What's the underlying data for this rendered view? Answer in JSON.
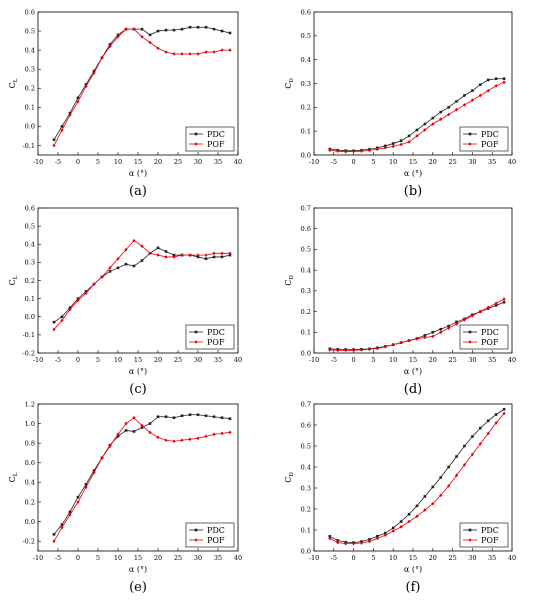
{
  "chart_data": [
    {
      "type": "line",
      "panel_label": "(a)",
      "xlabel": "α (°)",
      "ylabel": "CL",
      "xlim": [
        -10,
        40
      ],
      "ylim": [
        -0.15,
        0.6
      ],
      "xticks": [
        -10,
        -5,
        0,
        5,
        10,
        15,
        20,
        25,
        30,
        35,
        40
      ],
      "xtick_labels": [
        "-10",
        "-5",
        "0",
        "5",
        "10",
        "15",
        "20",
        "25",
        "30",
        "35",
        "40"
      ],
      "yticks": [
        -0.1,
        0.0,
        0.1,
        0.2,
        0.3,
        0.4,
        0.5,
        0.6
      ],
      "ytick_labels": [
        "-0.1",
        "0.0",
        "0.1",
        "0.2",
        "0.3",
        "0.4",
        "0.5",
        "0.6"
      ],
      "legend_position": "bottom-right",
      "series": [
        {
          "name": "PDC",
          "color": "#222222",
          "marker": "square",
          "x": [
            -6,
            -4,
            -2,
            0,
            2,
            4,
            6,
            8,
            10,
            12,
            14,
            16,
            18,
            20,
            22,
            24,
            26,
            28,
            30,
            32,
            34,
            36,
            38
          ],
          "y": [
            -0.07,
            0.0,
            0.07,
            0.15,
            0.22,
            0.29,
            0.36,
            0.43,
            0.48,
            0.51,
            0.51,
            0.51,
            0.48,
            0.5,
            0.505,
            0.505,
            0.51,
            0.52,
            0.52,
            0.52,
            0.51,
            0.5,
            0.49
          ]
        },
        {
          "name": "POF",
          "color": "#e8000b",
          "marker": "diamond",
          "x": [
            -6,
            -4,
            -2,
            0,
            2,
            4,
            6,
            8,
            10,
            12,
            14,
            16,
            18,
            20,
            22,
            24,
            26,
            28,
            30,
            32,
            34,
            36,
            38
          ],
          "y": [
            -0.1,
            -0.02,
            0.06,
            0.13,
            0.21,
            0.28,
            0.36,
            0.42,
            0.47,
            0.51,
            0.51,
            0.47,
            0.44,
            0.41,
            0.39,
            0.38,
            0.38,
            0.38,
            0.38,
            0.39,
            0.39,
            0.4,
            0.4
          ]
        }
      ]
    },
    {
      "type": "line",
      "panel_label": "(b)",
      "xlabel": "α (°)",
      "ylabel": "CD",
      "xlim": [
        -10,
        40
      ],
      "ylim": [
        0.0,
        0.6
      ],
      "xticks": [
        -10,
        -5,
        0,
        5,
        10,
        15,
        20,
        25,
        30,
        35,
        40
      ],
      "xtick_labels": [
        "-10",
        "-5",
        "0",
        "5",
        "10",
        "15",
        "20",
        "25",
        "30",
        "35",
        "40"
      ],
      "yticks": [
        0.0,
        0.1,
        0.2,
        0.3,
        0.4,
        0.5,
        0.6
      ],
      "ytick_labels": [
        "0.0",
        "0.1",
        "0.2",
        "0.3",
        "0.4",
        "0.5",
        "0.6"
      ],
      "legend_position": "bottom-right",
      "series": [
        {
          "name": "PDC",
          "color": "#222222",
          "marker": "square",
          "x": [
            -6,
            -4,
            -2,
            0,
            2,
            4,
            6,
            8,
            10,
            12,
            14,
            16,
            18,
            20,
            22,
            24,
            26,
            28,
            30,
            32,
            34,
            36,
            38
          ],
          "y": [
            0.025,
            0.02,
            0.018,
            0.018,
            0.02,
            0.024,
            0.03,
            0.038,
            0.048,
            0.06,
            0.08,
            0.105,
            0.13,
            0.155,
            0.18,
            0.2,
            0.225,
            0.25,
            0.27,
            0.295,
            0.315,
            0.32,
            0.32
          ]
        },
        {
          "name": "POF",
          "color": "#e8000b",
          "marker": "diamond",
          "x": [
            -6,
            -4,
            -2,
            0,
            2,
            4,
            6,
            8,
            10,
            12,
            14,
            16,
            18,
            20,
            22,
            24,
            26,
            28,
            30,
            32,
            34,
            36,
            38
          ],
          "y": [
            0.02,
            0.016,
            0.014,
            0.015,
            0.016,
            0.019,
            0.024,
            0.03,
            0.036,
            0.044,
            0.055,
            0.08,
            0.105,
            0.13,
            0.15,
            0.17,
            0.19,
            0.21,
            0.23,
            0.25,
            0.27,
            0.29,
            0.305
          ]
        }
      ]
    },
    {
      "type": "line",
      "panel_label": "(c)",
      "xlabel": "α (°)",
      "ylabel": "CL",
      "xlim": [
        -10,
        40
      ],
      "ylim": [
        -0.2,
        0.6
      ],
      "xticks": [
        -10,
        -5,
        0,
        5,
        10,
        15,
        20,
        25,
        30,
        35,
        40
      ],
      "xtick_labels": [
        "-10",
        "-5",
        "0",
        "5",
        "10",
        "15",
        "20",
        "25",
        "30",
        "35",
        "40"
      ],
      "yticks": [
        -0.2,
        -0.1,
        0.0,
        0.1,
        0.2,
        0.3,
        0.4,
        0.5,
        0.6
      ],
      "ytick_labels": [
        "-0.2",
        "-0.1",
        "0.0",
        "0.1",
        "0.2",
        "0.3",
        "0.4",
        "0.5",
        "0.6"
      ],
      "legend_position": "bottom-right",
      "series": [
        {
          "name": "PDC",
          "color": "#222222",
          "marker": "square",
          "x": [
            -6,
            -4,
            -2,
            0,
            2,
            4,
            6,
            8,
            10,
            12,
            14,
            16,
            18,
            20,
            22,
            24,
            26,
            28,
            30,
            32,
            34,
            36,
            38
          ],
          "y": [
            -0.03,
            0.0,
            0.05,
            0.1,
            0.14,
            0.18,
            0.22,
            0.25,
            0.27,
            0.29,
            0.28,
            0.31,
            0.35,
            0.38,
            0.36,
            0.34,
            0.34,
            0.34,
            0.33,
            0.32,
            0.33,
            0.33,
            0.34
          ]
        },
        {
          "name": "POF",
          "color": "#e8000b",
          "marker": "diamond",
          "x": [
            -6,
            -4,
            -2,
            0,
            2,
            4,
            6,
            8,
            10,
            12,
            14,
            16,
            18,
            20,
            22,
            24,
            26,
            28,
            30,
            32,
            34,
            36,
            38
          ],
          "y": [
            -0.07,
            -0.02,
            0.04,
            0.09,
            0.13,
            0.18,
            0.22,
            0.27,
            0.32,
            0.37,
            0.42,
            0.39,
            0.35,
            0.34,
            0.33,
            0.33,
            0.34,
            0.34,
            0.34,
            0.34,
            0.35,
            0.35,
            0.35
          ]
        }
      ]
    },
    {
      "type": "line",
      "panel_label": "(d)",
      "xlabel": "α (°)",
      "ylabel": "CD",
      "xlim": [
        -10,
        40
      ],
      "ylim": [
        0.0,
        0.7
      ],
      "xticks": [
        -10,
        -5,
        0,
        5,
        10,
        15,
        20,
        25,
        30,
        35,
        40
      ],
      "xtick_labels": [
        "-10",
        "-5",
        "0",
        "5",
        "10",
        "15",
        "20",
        "25",
        "30",
        "35",
        "40"
      ],
      "yticks": [
        0.0,
        0.1,
        0.2,
        0.3,
        0.4,
        0.5,
        0.6,
        0.7
      ],
      "ytick_labels": [
        "0.0",
        "0.1",
        "0.2",
        "0.3",
        "0.4",
        "0.5",
        "0.6",
        "0.7"
      ],
      "legend_position": "bottom-right",
      "series": [
        {
          "name": "PDC",
          "color": "#222222",
          "marker": "square",
          "x": [
            -6,
            -4,
            -2,
            0,
            2,
            4,
            6,
            8,
            10,
            12,
            14,
            16,
            18,
            20,
            22,
            24,
            26,
            28,
            30,
            32,
            34,
            36,
            38
          ],
          "y": [
            0.02,
            0.018,
            0.017,
            0.017,
            0.018,
            0.02,
            0.025,
            0.032,
            0.04,
            0.05,
            0.06,
            0.07,
            0.085,
            0.1,
            0.115,
            0.13,
            0.15,
            0.165,
            0.185,
            0.2,
            0.215,
            0.23,
            0.245
          ]
        },
        {
          "name": "POF",
          "color": "#e8000b",
          "marker": "diamond",
          "x": [
            -6,
            -4,
            -2,
            0,
            2,
            4,
            6,
            8,
            10,
            12,
            14,
            16,
            18,
            20,
            22,
            24,
            26,
            28,
            30,
            32,
            34,
            36,
            38
          ],
          "y": [
            0.015,
            0.013,
            0.013,
            0.013,
            0.015,
            0.018,
            0.022,
            0.03,
            0.04,
            0.05,
            0.06,
            0.068,
            0.075,
            0.08,
            0.1,
            0.12,
            0.14,
            0.16,
            0.18,
            0.2,
            0.22,
            0.24,
            0.26
          ]
        }
      ]
    },
    {
      "type": "line",
      "panel_label": "(e)",
      "xlabel": "α (°)",
      "ylabel": "CL",
      "xlim": [
        -10,
        40
      ],
      "ylim": [
        -0.3,
        1.2
      ],
      "xticks": [
        -10,
        -5,
        0,
        5,
        10,
        15,
        20,
        25,
        30,
        35,
        40
      ],
      "xtick_labels": [
        "-10",
        "-5",
        "0",
        "5",
        "10",
        "15",
        "20",
        "25",
        "30",
        "35",
        "40"
      ],
      "yticks": [
        -0.2,
        0.0,
        0.2,
        0.4,
        0.6,
        0.8,
        1.0,
        1.2
      ],
      "ytick_labels": [
        "-0.2",
        "0.0",
        "0.2",
        "0.4",
        "0.6",
        "0.8",
        "1.0",
        "1.2"
      ],
      "legend_position": "bottom-right",
      "series": [
        {
          "name": "PDC",
          "color": "#222222",
          "marker": "square",
          "x": [
            -6,
            -4,
            -2,
            0,
            2,
            4,
            6,
            8,
            10,
            12,
            14,
            16,
            18,
            20,
            22,
            24,
            26,
            28,
            30,
            32,
            34,
            36,
            38
          ],
          "y": [
            -0.13,
            -0.03,
            0.1,
            0.25,
            0.38,
            0.52,
            0.65,
            0.78,
            0.87,
            0.93,
            0.92,
            0.96,
            1.0,
            1.07,
            1.07,
            1.06,
            1.08,
            1.09,
            1.09,
            1.08,
            1.07,
            1.06,
            1.05
          ]
        },
        {
          "name": "POF",
          "color": "#e8000b",
          "marker": "diamond",
          "x": [
            -6,
            -4,
            -2,
            0,
            2,
            4,
            6,
            8,
            10,
            12,
            14,
            16,
            18,
            20,
            22,
            24,
            26,
            28,
            30,
            32,
            34,
            36,
            38
          ],
          "y": [
            -0.2,
            -0.06,
            0.07,
            0.2,
            0.35,
            0.5,
            0.65,
            0.77,
            0.89,
            1.0,
            1.06,
            0.98,
            0.91,
            0.86,
            0.83,
            0.82,
            0.83,
            0.84,
            0.85,
            0.87,
            0.89,
            0.9,
            0.91
          ]
        }
      ]
    },
    {
      "type": "line",
      "panel_label": "(f)",
      "xlabel": "α (°)",
      "ylabel": "CD",
      "xlim": [
        -10,
        40
      ],
      "ylim": [
        0.0,
        0.7
      ],
      "xticks": [
        -10,
        -5,
        0,
        5,
        10,
        15,
        20,
        25,
        30,
        35,
        40
      ],
      "xtick_labels": [
        "-10",
        "-5",
        "0",
        "5",
        "10",
        "15",
        "20",
        "25",
        "30",
        "35",
        "40"
      ],
      "yticks": [
        0.0,
        0.1,
        0.2,
        0.3,
        0.4,
        0.5,
        0.6,
        0.7
      ],
      "ytick_labels": [
        "0.0",
        "0.1",
        "0.2",
        "0.3",
        "0.4",
        "0.5",
        "0.6",
        "0.7"
      ],
      "legend_position": "bottom-right",
      "series": [
        {
          "name": "PDC",
          "color": "#222222",
          "marker": "square",
          "x": [
            -6,
            -4,
            -2,
            0,
            2,
            4,
            6,
            8,
            10,
            12,
            14,
            16,
            18,
            20,
            22,
            24,
            26,
            28,
            30,
            32,
            34,
            36,
            38
          ],
          "y": [
            0.07,
            0.05,
            0.042,
            0.04,
            0.045,
            0.055,
            0.07,
            0.085,
            0.11,
            0.14,
            0.175,
            0.215,
            0.26,
            0.305,
            0.35,
            0.4,
            0.45,
            0.5,
            0.545,
            0.585,
            0.62,
            0.65,
            0.675
          ]
        },
        {
          "name": "POF",
          "color": "#e8000b",
          "marker": "diamond",
          "x": [
            -6,
            -4,
            -2,
            0,
            2,
            4,
            6,
            8,
            10,
            12,
            14,
            16,
            18,
            20,
            22,
            24,
            26,
            28,
            30,
            32,
            34,
            36,
            38
          ],
          "y": [
            0.06,
            0.04,
            0.035,
            0.035,
            0.038,
            0.045,
            0.06,
            0.075,
            0.095,
            0.115,
            0.14,
            0.165,
            0.195,
            0.225,
            0.265,
            0.31,
            0.36,
            0.41,
            0.46,
            0.51,
            0.56,
            0.61,
            0.655
          ]
        }
      ]
    }
  ]
}
